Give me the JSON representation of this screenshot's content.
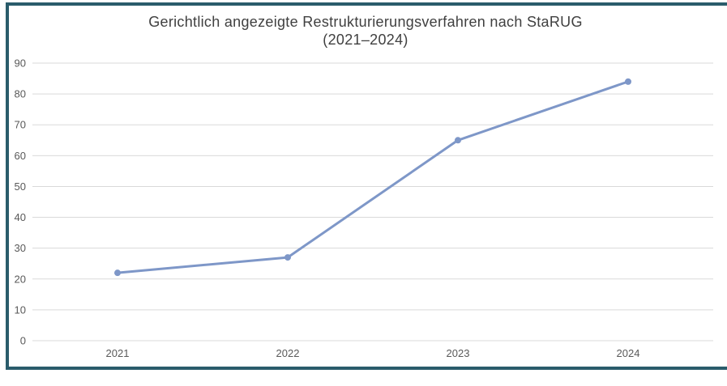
{
  "chart": {
    "title_line1": "Gerichtlich angezeigte Restrukturierungsverfahren nach StaRUG",
    "title_line2": "(2021–2024)"
  },
  "chart_data": {
    "type": "line",
    "title": "Gerichtlich angezeigte Restrukturierungsverfahren nach StaRUG (2021–2024)",
    "categories": [
      "2021",
      "2022",
      "2023",
      "2024"
    ],
    "values": [
      22,
      27,
      65,
      84
    ],
    "xlabel": "",
    "ylabel": "",
    "ylim": [
      0,
      90
    ],
    "yticks": [
      0,
      10,
      20,
      30,
      40,
      50,
      60,
      70,
      80,
      90
    ],
    "grid": true,
    "legend": false,
    "colors": {
      "line": "#7e97c8",
      "marker": "#7e97c8",
      "gridline": "#d9d9d9",
      "tick_label": "#595959",
      "title": "#404040",
      "frame_border": "#2a5c6b",
      "background": "#ffffff"
    }
  }
}
